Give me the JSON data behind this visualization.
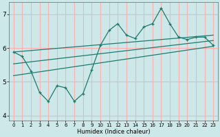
{
  "xlabel": "Humidex (Indice chaleur)",
  "bg_color": "#cce8e8",
  "grid_color": "#ffb0b0",
  "line_color": "#1a7a6e",
  "xlim": [
    -0.5,
    23.5
  ],
  "ylim": [
    3.85,
    7.35
  ],
  "yticks": [
    4,
    5,
    6,
    7
  ],
  "xticks": [
    0,
    1,
    2,
    3,
    4,
    5,
    6,
    7,
    8,
    9,
    10,
    11,
    12,
    13,
    14,
    15,
    16,
    17,
    18,
    19,
    20,
    21,
    22,
    23
  ],
  "main_x": [
    0,
    1,
    2,
    3,
    4,
    5,
    6,
    7,
    8,
    9,
    10,
    11,
    12,
    13,
    14,
    15,
    16,
    17,
    18,
    19,
    20,
    21,
    22,
    23
  ],
  "main_y": [
    5.88,
    5.75,
    5.32,
    4.68,
    4.42,
    4.88,
    4.82,
    4.42,
    4.65,
    5.35,
    6.08,
    6.52,
    6.72,
    6.38,
    6.28,
    6.62,
    6.72,
    7.18,
    6.72,
    6.32,
    6.25,
    6.32,
    6.32,
    6.08
  ],
  "upper_line_x": [
    0,
    23
  ],
  "upper_line_y": [
    5.88,
    6.38
  ],
  "lower_line_x": [
    0,
    23
  ],
  "lower_line_y": [
    5.18,
    6.05
  ],
  "mid_line_x": [
    0,
    23
  ],
  "mid_line_y": [
    5.53,
    6.22
  ],
  "xlabel_fontsize": 6.0,
  "tick_fontsize_x": 5.0,
  "tick_fontsize_y": 6.5
}
